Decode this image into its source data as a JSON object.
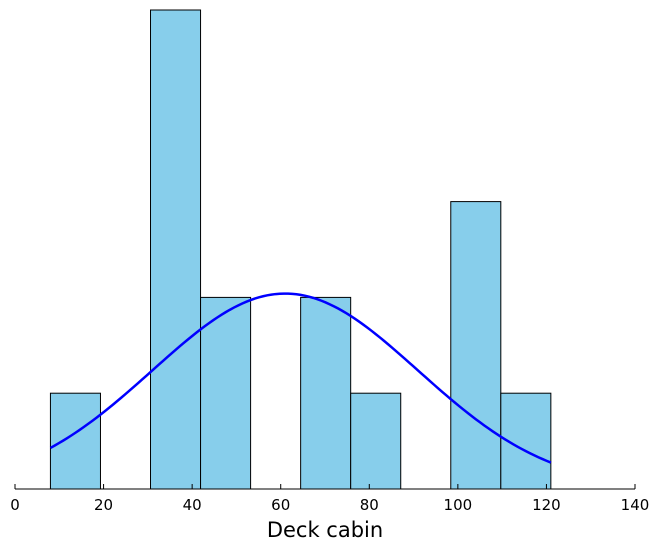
{
  "chart_data": {
    "type": "bar",
    "subtype": "histogram-with-density",
    "title": "",
    "xlabel": "Deck cabin",
    "ylabel": "",
    "xlim": [
      0,
      140
    ],
    "ylim": [
      0,
      5
    ],
    "x_ticks": [
      0,
      20,
      40,
      60,
      80,
      100,
      120,
      140
    ],
    "y_axis_visible": false,
    "grid": false,
    "bins": [
      {
        "x0": 8,
        "x1": 19.3,
        "count": 1
      },
      {
        "x0": 19.3,
        "x1": 30.6,
        "count": 0
      },
      {
        "x0": 30.6,
        "x1": 41.9,
        "count": 5
      },
      {
        "x0": 41.9,
        "x1": 53.2,
        "count": 2
      },
      {
        "x0": 53.2,
        "x1": 64.5,
        "count": 0
      },
      {
        "x0": 64.5,
        "x1": 75.8,
        "count": 2
      },
      {
        "x0": 75.8,
        "x1": 87.1,
        "count": 1
      },
      {
        "x0": 87.1,
        "x1": 98.4,
        "count": 0
      },
      {
        "x0": 98.4,
        "x1": 109.7,
        "count": 3
      },
      {
        "x0": 109.7,
        "x1": 121,
        "count": 1
      }
    ],
    "density_curve": {
      "type": "normal",
      "mean": 61,
      "std": 30,
      "peak_count": 2.04,
      "x_range": [
        8,
        121
      ]
    },
    "colors": {
      "bar_fill": "#87ceeb",
      "bar_edge": "#000000",
      "curve": "#0000ff"
    }
  }
}
